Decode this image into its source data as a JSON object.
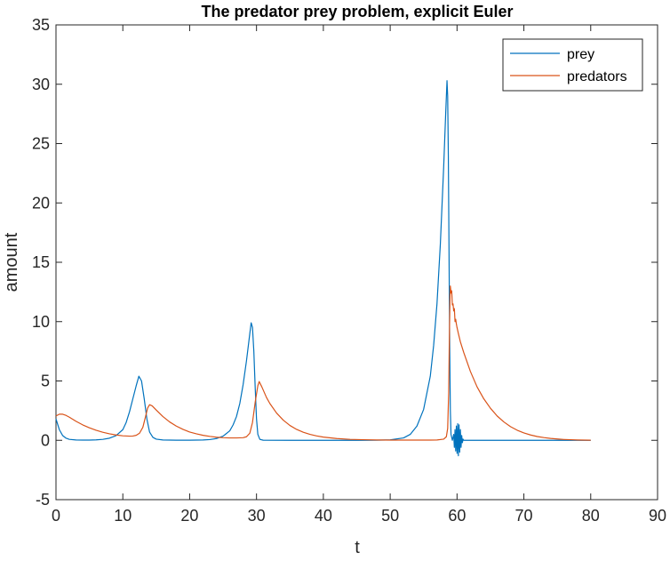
{
  "chart_data": {
    "type": "line",
    "title": "The predator prey problem, explicit Euler",
    "xlabel": "t",
    "ylabel": "amount",
    "xlim": [
      0,
      90
    ],
    "ylim": [
      -5,
      35
    ],
    "xticks": [
      0,
      10,
      20,
      30,
      40,
      50,
      60,
      70,
      80,
      90
    ],
    "yticks": [
      -5,
      0,
      5,
      10,
      15,
      20,
      25,
      30,
      35
    ],
    "grid": false,
    "legend_position": "top-right",
    "series": [
      {
        "name": "prey",
        "color": "#0072BD",
        "points": [
          [
            0,
            1.8
          ],
          [
            0.5,
            0.9
          ],
          [
            1,
            0.4
          ],
          [
            1.5,
            0.18
          ],
          [
            2,
            0.08
          ],
          [
            3,
            0.03
          ],
          [
            4,
            0.02
          ],
          [
            5,
            0.02
          ],
          [
            6,
            0.04
          ],
          [
            7,
            0.08
          ],
          [
            8,
            0.18
          ],
          [
            9,
            0.4
          ],
          [
            10,
            0.9
          ],
          [
            10.5,
            1.5
          ],
          [
            11,
            2.4
          ],
          [
            11.5,
            3.5
          ],
          [
            12,
            4.6
          ],
          [
            12.4,
            5.4
          ],
          [
            12.8,
            5.0
          ],
          [
            13.2,
            3.5
          ],
          [
            13.6,
            1.8
          ],
          [
            14,
            0.7
          ],
          [
            14.5,
            0.25
          ],
          [
            15,
            0.1
          ],
          [
            16,
            0.03
          ],
          [
            18,
            0.01
          ],
          [
            20,
            0.01
          ],
          [
            22,
            0.03
          ],
          [
            23,
            0.06
          ],
          [
            24,
            0.15
          ],
          [
            25,
            0.35
          ],
          [
            26,
            0.8
          ],
          [
            26.5,
            1.3
          ],
          [
            27,
            2.0
          ],
          [
            27.5,
            3.1
          ],
          [
            28,
            4.7
          ],
          [
            28.5,
            6.7
          ],
          [
            29,
            9.0
          ],
          [
            29.2,
            9.9
          ],
          [
            29.4,
            9.5
          ],
          [
            29.6,
            7.5
          ],
          [
            29.8,
            4.5
          ],
          [
            30,
            1.8
          ],
          [
            30.2,
            0.5
          ],
          [
            30.5,
            0.08
          ],
          [
            31,
            0.01
          ],
          [
            35,
            0
          ],
          [
            40,
            0
          ],
          [
            45,
            0
          ],
          [
            48,
            0.01
          ],
          [
            50,
            0.04
          ],
          [
            52,
            0.2
          ],
          [
            53,
            0.5
          ],
          [
            54,
            1.2
          ],
          [
            55,
            2.6
          ],
          [
            56,
            5.4
          ],
          [
            56.5,
            8.0
          ],
          [
            57,
            11.5
          ],
          [
            57.5,
            16.5
          ],
          [
            58,
            23.0
          ],
          [
            58.3,
            27.5
          ],
          [
            58.5,
            30.3
          ],
          [
            58.6,
            29.0
          ],
          [
            58.7,
            24.0
          ],
          [
            58.8,
            16.0
          ],
          [
            58.9,
            8.0
          ],
          [
            59,
            2.5
          ],
          [
            59.1,
            0.5
          ],
          [
            59.3,
            0
          ],
          [
            59.5,
            0.5
          ],
          [
            59.6,
            -0.6
          ],
          [
            59.7,
            0.9
          ],
          [
            59.8,
            -0.9
          ],
          [
            59.9,
            1.2
          ],
          [
            60,
            -1.1
          ],
          [
            60.1,
            1.4
          ],
          [
            60.2,
            -1.3
          ],
          [
            60.3,
            1.3
          ],
          [
            60.4,
            -1.0
          ],
          [
            60.5,
            0.9
          ],
          [
            60.6,
            -0.6
          ],
          [
            60.7,
            0.4
          ],
          [
            60.8,
            -0.2
          ],
          [
            60.9,
            0.1
          ],
          [
            61,
            0
          ],
          [
            65,
            0
          ],
          [
            70,
            0
          ],
          [
            75,
            0
          ],
          [
            80,
            0
          ]
        ]
      },
      {
        "name": "predators",
        "color": "#D95319",
        "points": [
          [
            0,
            2.05
          ],
          [
            0.5,
            2.2
          ],
          [
            1,
            2.2
          ],
          [
            1.5,
            2.1
          ],
          [
            2,
            1.95
          ],
          [
            3,
            1.6
          ],
          [
            4,
            1.3
          ],
          [
            5,
            1.05
          ],
          [
            6,
            0.85
          ],
          [
            7,
            0.68
          ],
          [
            8,
            0.55
          ],
          [
            9,
            0.45
          ],
          [
            10,
            0.38
          ],
          [
            11,
            0.35
          ],
          [
            11.5,
            0.36
          ],
          [
            12,
            0.42
          ],
          [
            12.5,
            0.6
          ],
          [
            13,
            1.1
          ],
          [
            13.4,
            2.0
          ],
          [
            13.7,
            2.7
          ],
          [
            14,
            3.0
          ],
          [
            14.4,
            2.9
          ],
          [
            15,
            2.55
          ],
          [
            16,
            2.0
          ],
          [
            17,
            1.55
          ],
          [
            18,
            1.2
          ],
          [
            19,
            0.92
          ],
          [
            20,
            0.7
          ],
          [
            21,
            0.55
          ],
          [
            22,
            0.42
          ],
          [
            23,
            0.33
          ],
          [
            24,
            0.26
          ],
          [
            25,
            0.22
          ],
          [
            26,
            0.2
          ],
          [
            27,
            0.2
          ],
          [
            28,
            0.22
          ],
          [
            28.5,
            0.3
          ],
          [
            29,
            0.6
          ],
          [
            29.4,
            1.5
          ],
          [
            29.8,
            3.2
          ],
          [
            30.2,
            4.6
          ],
          [
            30.4,
            4.95
          ],
          [
            30.8,
            4.5
          ],
          [
            31.5,
            3.6
          ],
          [
            32,
            3.1
          ],
          [
            33,
            2.3
          ],
          [
            34,
            1.7
          ],
          [
            35,
            1.25
          ],
          [
            36,
            0.92
          ],
          [
            37,
            0.68
          ],
          [
            38,
            0.5
          ],
          [
            39,
            0.37
          ],
          [
            40,
            0.27
          ],
          [
            42,
            0.15
          ],
          [
            44,
            0.08
          ],
          [
            46,
            0.05
          ],
          [
            48,
            0.03
          ],
          [
            50,
            0.02
          ],
          [
            52,
            0.02
          ],
          [
            54,
            0.02
          ],
          [
            56,
            0.02
          ],
          [
            57,
            0.03
          ],
          [
            58,
            0.1
          ],
          [
            58.4,
            0.3
          ],
          [
            58.6,
            1.0
          ],
          [
            58.75,
            4.0
          ],
          [
            58.85,
            8.5
          ],
          [
            58.95,
            12.2
          ],
          [
            59,
            13.0
          ],
          [
            59.1,
            12.4
          ],
          [
            59.2,
            12.6
          ],
          [
            59.3,
            11.4
          ],
          [
            59.4,
            11.5
          ],
          [
            59.5,
            10.9
          ],
          [
            59.6,
            11.1
          ],
          [
            59.7,
            10.0
          ],
          [
            59.8,
            10.2
          ],
          [
            59.9,
            9.8
          ],
          [
            60,
            9.5
          ],
          [
            60.2,
            9.0
          ],
          [
            60.5,
            8.3
          ],
          [
            61,
            7.4
          ],
          [
            62,
            5.8
          ],
          [
            63,
            4.5
          ],
          [
            64,
            3.5
          ],
          [
            65,
            2.7
          ],
          [
            66,
            2.05
          ],
          [
            67,
            1.55
          ],
          [
            68,
            1.15
          ],
          [
            69,
            0.85
          ],
          [
            70,
            0.62
          ],
          [
            71,
            0.45
          ],
          [
            72,
            0.32
          ],
          [
            73,
            0.23
          ],
          [
            74,
            0.16
          ],
          [
            75,
            0.11
          ],
          [
            76,
            0.07
          ],
          [
            77,
            0.05
          ],
          [
            78,
            0.03
          ],
          [
            79,
            0.02
          ],
          [
            80,
            0.01
          ]
        ]
      }
    ]
  }
}
